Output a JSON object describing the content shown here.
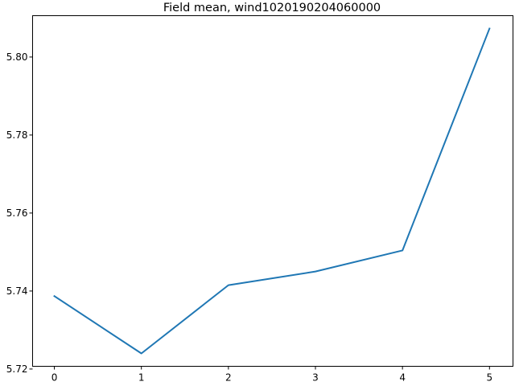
{
  "chart_data": {
    "type": "line",
    "title": "Field mean, wind1020190204060000",
    "xlabel": "",
    "ylabel": "",
    "x": [
      0,
      1,
      2,
      3,
      4,
      5
    ],
    "series": [
      {
        "values": [
          5.7387,
          5.724,
          5.7415,
          5.745,
          5.7504,
          5.8073
        ],
        "color": "#1f77b4"
      }
    ],
    "xlim": [
      -0.25,
      5.27
    ],
    "ylim": [
      5.7207,
      5.8106
    ],
    "xticks": [
      0,
      1,
      2,
      3,
      4,
      5
    ],
    "xtick_labels": [
      "0",
      "1",
      "2",
      "3",
      "4",
      "5"
    ],
    "yticks": [
      5.72,
      5.74,
      5.76,
      5.78,
      5.8
    ],
    "ytick_labels": [
      "5.72",
      "5.74",
      "5.76",
      "5.78",
      "5.80"
    ],
    "grid": false,
    "legend": false
  }
}
